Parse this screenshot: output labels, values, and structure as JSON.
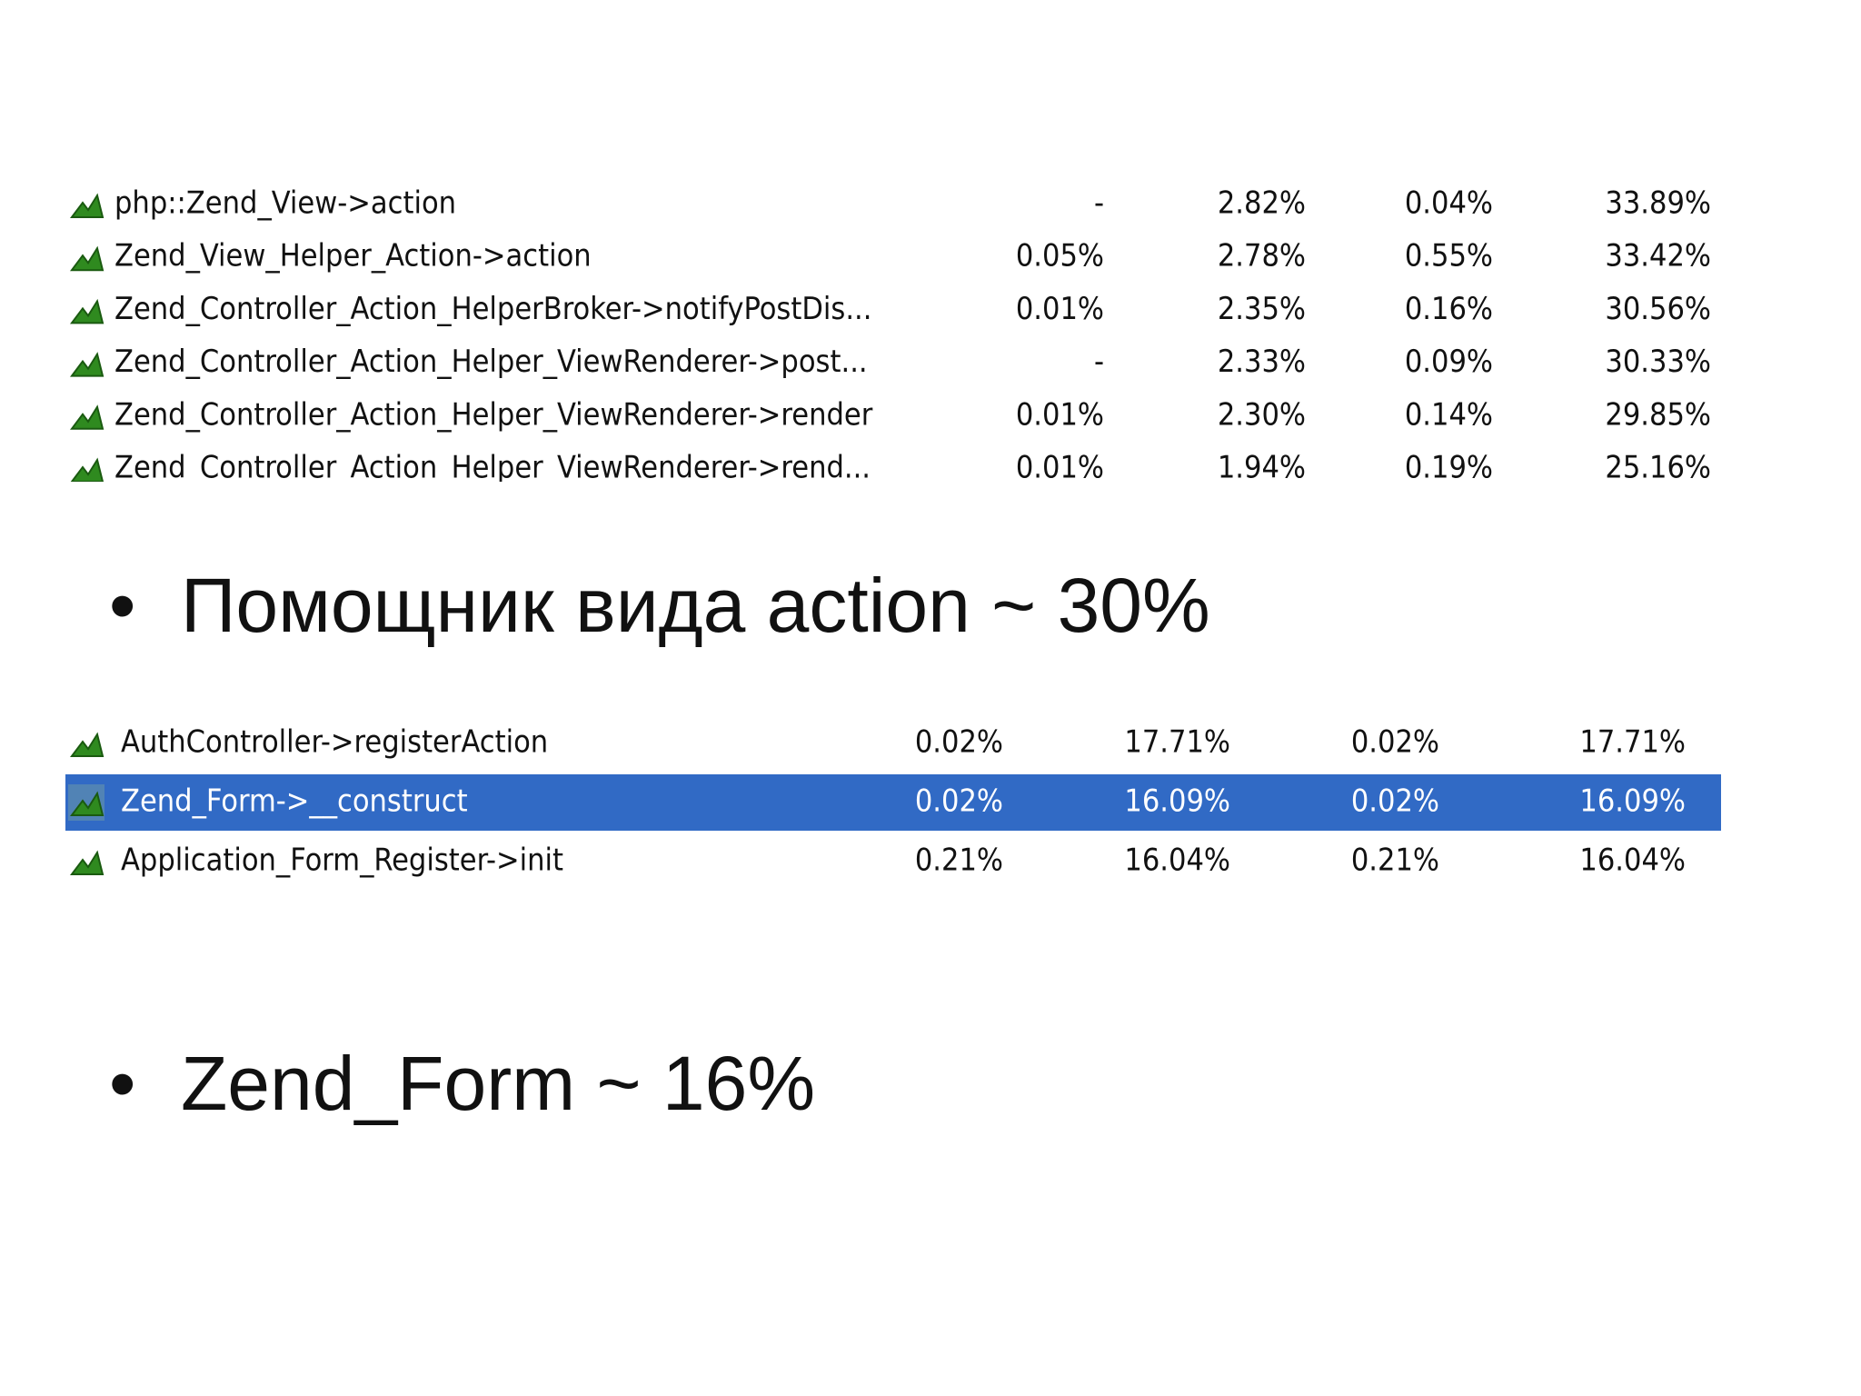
{
  "table1": {
    "rows": [
      [
        "php::Zend_View->action",
        "-",
        "2.82%",
        "0.04%",
        "33.89%"
      ],
      [
        "Zend_View_Helper_Action->action",
        "0.05%",
        "2.78%",
        "0.55%",
        "33.42%"
      ],
      [
        "Zend_Controller_Action_HelperBroker->notifyPostDis...",
        "0.01%",
        "2.35%",
        "0.16%",
        "30.56%"
      ],
      [
        "Zend_Controller_Action_Helper_ViewRenderer->post...",
        "-",
        "2.33%",
        "0.09%",
        "30.33%"
      ],
      [
        "Zend_Controller_Action_Helper_ViewRenderer->render",
        "0.01%",
        "2.30%",
        "0.14%",
        "29.85%"
      ],
      [
        "Zend_Controller_Action_Helper_ViewRenderer->rend...",
        "0.01%",
        "1.94%",
        "0.19%",
        "25.16%"
      ]
    ]
  },
  "bullet1": "Помощник вида action ~ 30%",
  "table2": {
    "rows": [
      [
        "AuthController->registerAction",
        "0.02%",
        "17.71%",
        "0.02%",
        "17.71%"
      ],
      [
        "Zend_Form->__construct",
        "0.02%",
        "16.09%",
        "0.02%",
        "16.09%"
      ],
      [
        "Application_Form_Register->init",
        "0.21%",
        "16.04%",
        "0.21%",
        "16.04%"
      ]
    ],
    "selected": 1
  },
  "bullet2": "Zend_Form ~ 16%"
}
